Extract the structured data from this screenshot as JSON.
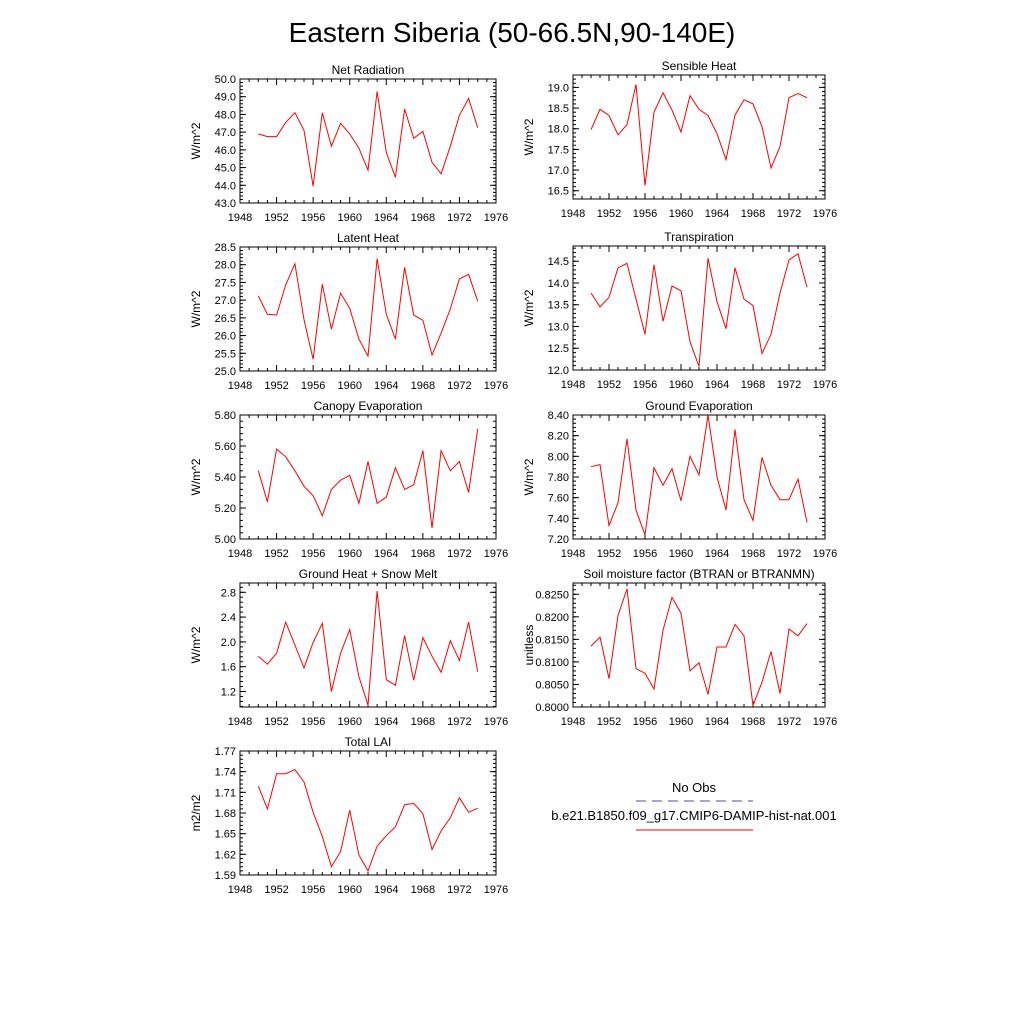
{
  "figure": {
    "title": "Eastern Siberia (50-66.5N,90-140E)"
  },
  "legend": {
    "entries": [
      {
        "label": "No Obs",
        "color": "#4d4d99",
        "style": "dashed"
      },
      {
        "label": "b.e21.B1850.f09_g17.CMIP6-DAMIP-hist-nat.001",
        "color": "#ff0000",
        "style": "solid"
      }
    ]
  },
  "colors": {
    "series": "#ff0000",
    "axis": "#000000"
  },
  "chart_data": [
    {
      "type": "line",
      "title": "Net Radiation",
      "ylabel": "W/m^2",
      "xlim": [
        1948,
        1976
      ],
      "xticks": [
        1948,
        1952,
        1956,
        1960,
        1964,
        1968,
        1972,
        1976
      ],
      "ylim": [
        43.0,
        50.0
      ],
      "yticks": [
        43.0,
        44.0,
        45.0,
        46.0,
        47.0,
        48.0,
        49.0,
        50.0
      ],
      "ydec": 1,
      "x": [
        1950,
        1951,
        1952,
        1953,
        1954,
        1955,
        1956,
        1957,
        1958,
        1959,
        1960,
        1961,
        1962,
        1963,
        1964,
        1965,
        1966,
        1967,
        1968,
        1969,
        1970,
        1971,
        1972,
        1973,
        1974
      ],
      "series": [
        {
          "name": "b.e21.B1850.f09_g17.CMIP6-DAMIP-hist-nat.001",
          "values": [
            46.9,
            46.75,
            46.75,
            47.55,
            48.1,
            47.1,
            43.95,
            48.1,
            46.2,
            47.5,
            46.9,
            46.1,
            44.85,
            49.3,
            45.85,
            44.45,
            48.3,
            46.65,
            47.05,
            45.3,
            44.65,
            46.2,
            47.95,
            48.9,
            47.25
          ]
        }
      ]
    },
    {
      "type": "line",
      "title": "Sensible Heat",
      "ylabel": "W/m^2",
      "xlim": [
        1948,
        1976
      ],
      "xticks": [
        1948,
        1952,
        1956,
        1960,
        1964,
        1968,
        1972,
        1976
      ],
      "ylim": [
        16.3,
        19.3
      ],
      "yticks": [
        16.5,
        17.0,
        17.5,
        18.0,
        18.5,
        19.0
      ],
      "ydec": 1,
      "x": [
        1950,
        1951,
        1952,
        1953,
        1954,
        1955,
        1956,
        1957,
        1958,
        1959,
        1960,
        1961,
        1962,
        1963,
        1964,
        1965,
        1966,
        1967,
        1968,
        1969,
        1970,
        1971,
        1972,
        1973,
        1974
      ],
      "series": [
        {
          "name": "b.e21.B1850.f09_g17.CMIP6-DAMIP-hist-nat.001",
          "values": [
            17.98,
            18.47,
            18.32,
            17.85,
            18.1,
            19.07,
            16.63,
            18.4,
            18.87,
            18.45,
            17.92,
            18.8,
            18.47,
            18.32,
            17.88,
            17.25,
            18.33,
            18.7,
            18.6,
            18.05,
            17.05,
            17.57,
            18.75,
            18.85,
            18.75
          ]
        }
      ]
    },
    {
      "type": "line",
      "title": "Latent Heat",
      "ylabel": "W/m^2",
      "xlim": [
        1948,
        1976
      ],
      "xticks": [
        1948,
        1952,
        1956,
        1960,
        1964,
        1968,
        1972,
        1976
      ],
      "ylim": [
        25.0,
        28.5
      ],
      "yticks": [
        25.0,
        25.5,
        26.0,
        26.5,
        27.0,
        27.5,
        28.0,
        28.5
      ],
      "ydec": 1,
      "x": [
        1950,
        1951,
        1952,
        1953,
        1954,
        1955,
        1956,
        1957,
        1958,
        1959,
        1960,
        1961,
        1962,
        1963,
        1964,
        1965,
        1966,
        1967,
        1968,
        1969,
        1970,
        1971,
        1972,
        1973,
        1974
      ],
      "series": [
        {
          "name": "b.e21.B1850.f09_g17.CMIP6-DAMIP-hist-nat.001",
          "values": [
            27.12,
            26.6,
            26.58,
            27.43,
            28.03,
            26.45,
            25.33,
            27.45,
            26.18,
            27.2,
            26.77,
            25.9,
            25.42,
            28.17,
            26.6,
            25.9,
            27.92,
            26.58,
            26.43,
            25.45,
            26.07,
            26.75,
            27.6,
            27.73,
            26.97
          ]
        }
      ]
    },
    {
      "type": "line",
      "title": "Transpiration",
      "ylabel": "W/m^2",
      "xlim": [
        1948,
        1976
      ],
      "xticks": [
        1948,
        1952,
        1956,
        1960,
        1964,
        1968,
        1972,
        1976
      ],
      "ylim": [
        12.0,
        14.85
      ],
      "yticks": [
        12.0,
        12.5,
        13.0,
        13.5,
        14.0,
        14.5
      ],
      "ydec": 1,
      "x": [
        1950,
        1951,
        1952,
        1953,
        1954,
        1955,
        1956,
        1957,
        1958,
        1959,
        1960,
        1961,
        1962,
        1963,
        1964,
        1965,
        1966,
        1967,
        1968,
        1969,
        1970,
        1971,
        1972,
        1973,
        1974
      ],
      "series": [
        {
          "name": "b.e21.B1850.f09_g17.CMIP6-DAMIP-hist-nat.001",
          "values": [
            13.77,
            13.45,
            13.67,
            14.35,
            14.45,
            13.63,
            12.82,
            14.42,
            13.12,
            13.93,
            13.82,
            12.65,
            12.08,
            14.57,
            13.57,
            12.95,
            14.35,
            13.63,
            13.48,
            12.38,
            12.82,
            13.77,
            14.53,
            14.67,
            13.9
          ]
        }
      ]
    },
    {
      "type": "line",
      "title": "Canopy Evaporation",
      "ylabel": "W/m^2",
      "xlim": [
        1948,
        1976
      ],
      "xticks": [
        1948,
        1952,
        1956,
        1960,
        1964,
        1968,
        1972,
        1976
      ],
      "ylim": [
        5.0,
        5.8
      ],
      "yticks": [
        5.0,
        5.2,
        5.4,
        5.6,
        5.8
      ],
      "ydec": 2,
      "x": [
        1950,
        1951,
        1952,
        1953,
        1954,
        1955,
        1956,
        1957,
        1958,
        1959,
        1960,
        1961,
        1962,
        1963,
        1964,
        1965,
        1966,
        1967,
        1968,
        1969,
        1970,
        1971,
        1972,
        1973,
        1974
      ],
      "series": [
        {
          "name": "b.e21.B1850.f09_g17.CMIP6-DAMIP-hist-nat.001",
          "values": [
            5.44,
            5.24,
            5.58,
            5.53,
            5.44,
            5.34,
            5.28,
            5.15,
            5.32,
            5.38,
            5.41,
            5.23,
            5.5,
            5.23,
            5.27,
            5.46,
            5.32,
            5.35,
            5.57,
            5.07,
            5.57,
            5.44,
            5.5,
            5.3,
            5.71
          ]
        }
      ]
    },
    {
      "type": "line",
      "title": "Ground Evaporation",
      "ylabel": "W/m^2",
      "xlim": [
        1948,
        1976
      ],
      "xticks": [
        1948,
        1952,
        1956,
        1960,
        1964,
        1968,
        1972,
        1976
      ],
      "ylim": [
        7.2,
        8.4
      ],
      "yticks": [
        7.2,
        7.4,
        7.6,
        7.8,
        8.0,
        8.2,
        8.4
      ],
      "ydec": 2,
      "x": [
        1950,
        1951,
        1952,
        1953,
        1954,
        1955,
        1956,
        1957,
        1958,
        1959,
        1960,
        1961,
        1962,
        1963,
        1964,
        1965,
        1966,
        1967,
        1968,
        1969,
        1970,
        1971,
        1972,
        1973,
        1974
      ],
      "series": [
        {
          "name": "b.e21.B1850.f09_g17.CMIP6-DAMIP-hist-nat.001",
          "values": [
            7.9,
            7.92,
            7.33,
            7.55,
            8.17,
            7.48,
            7.24,
            7.89,
            7.72,
            7.88,
            7.57,
            8.0,
            7.82,
            8.4,
            7.8,
            7.48,
            8.26,
            7.58,
            7.38,
            7.99,
            7.72,
            7.58,
            7.58,
            7.78,
            7.36
          ]
        }
      ]
    },
    {
      "type": "line",
      "title": "Ground Heat + Snow Melt",
      "ylabel": "W/m^2",
      "xlim": [
        1948,
        1976
      ],
      "xticks": [
        1948,
        1952,
        1956,
        1960,
        1964,
        1968,
        1972,
        1976
      ],
      "ylim": [
        0.95,
        2.95
      ],
      "yticks": [
        1.2,
        1.6,
        2.0,
        2.4,
        2.8
      ],
      "ydec": 1,
      "x": [
        1950,
        1951,
        1952,
        1953,
        1954,
        1955,
        1956,
        1957,
        1958,
        1959,
        1960,
        1961,
        1962,
        1963,
        1964,
        1965,
        1966,
        1967,
        1968,
        1969,
        1970,
        1971,
        1972,
        1973,
        1974
      ],
      "series": [
        {
          "name": "b.e21.B1850.f09_g17.CMIP6-DAMIP-hist-nat.001",
          "values": [
            1.77,
            1.64,
            1.82,
            2.32,
            1.95,
            1.58,
            1.99,
            2.3,
            1.2,
            1.82,
            2.2,
            1.44,
            0.98,
            2.82,
            1.39,
            1.3,
            2.1,
            1.38,
            2.07,
            1.77,
            1.51,
            2.02,
            1.7,
            2.32,
            1.52
          ]
        }
      ]
    },
    {
      "type": "line",
      "title": "Soil moisture factor (BTRAN or BTRANMN)",
      "ylabel": "unitless",
      "xlim": [
        1948,
        1976
      ],
      "xticks": [
        1948,
        1952,
        1956,
        1960,
        1964,
        1968,
        1972,
        1976
      ],
      "ylim": [
        0.8,
        0.8275
      ],
      "yticks": [
        0.8,
        0.805,
        0.81,
        0.815,
        0.82,
        0.825
      ],
      "ydec": 4,
      "x": [
        1950,
        1951,
        1952,
        1953,
        1954,
        1955,
        1956,
        1957,
        1958,
        1959,
        1960,
        1961,
        1962,
        1963,
        1964,
        1965,
        1966,
        1967,
        1968,
        1969,
        1970,
        1971,
        1972,
        1973,
        1974
      ],
      "series": [
        {
          "name": "b.e21.B1850.f09_g17.CMIP6-DAMIP-hist-nat.001",
          "values": [
            0.8135,
            0.8155,
            0.8063,
            0.8203,
            0.8262,
            0.8085,
            0.8075,
            0.804,
            0.817,
            0.8243,
            0.8208,
            0.808,
            0.8098,
            0.8028,
            0.8133,
            0.8133,
            0.8183,
            0.8158,
            0.8003,
            0.8055,
            0.8123,
            0.803,
            0.8173,
            0.8158,
            0.8185
          ]
        }
      ]
    },
    {
      "type": "line",
      "title": "Total LAI",
      "ylabel": "m2/m2",
      "xlim": [
        1948,
        1976
      ],
      "xticks": [
        1948,
        1952,
        1956,
        1960,
        1964,
        1968,
        1972,
        1976
      ],
      "ylim": [
        1.59,
        1.77
      ],
      "yticks": [
        1.59,
        1.62,
        1.65,
        1.68,
        1.71,
        1.74,
        1.77
      ],
      "ydec": 2,
      "x": [
        1950,
        1951,
        1952,
        1953,
        1954,
        1955,
        1956,
        1957,
        1958,
        1959,
        1960,
        1961,
        1962,
        1963,
        1964,
        1965,
        1966,
        1967,
        1968,
        1969,
        1970,
        1971,
        1972,
        1973,
        1974
      ],
      "series": [
        {
          "name": "b.e21.B1850.f09_g17.CMIP6-DAMIP-hist-nat.001",
          "values": [
            1.719,
            1.686,
            1.737,
            1.737,
            1.743,
            1.725,
            1.681,
            1.646,
            1.602,
            1.624,
            1.684,
            1.619,
            1.596,
            1.632,
            1.647,
            1.66,
            1.692,
            1.694,
            1.679,
            1.627,
            1.654,
            1.673,
            1.702,
            1.681,
            1.687
          ]
        }
      ]
    }
  ]
}
